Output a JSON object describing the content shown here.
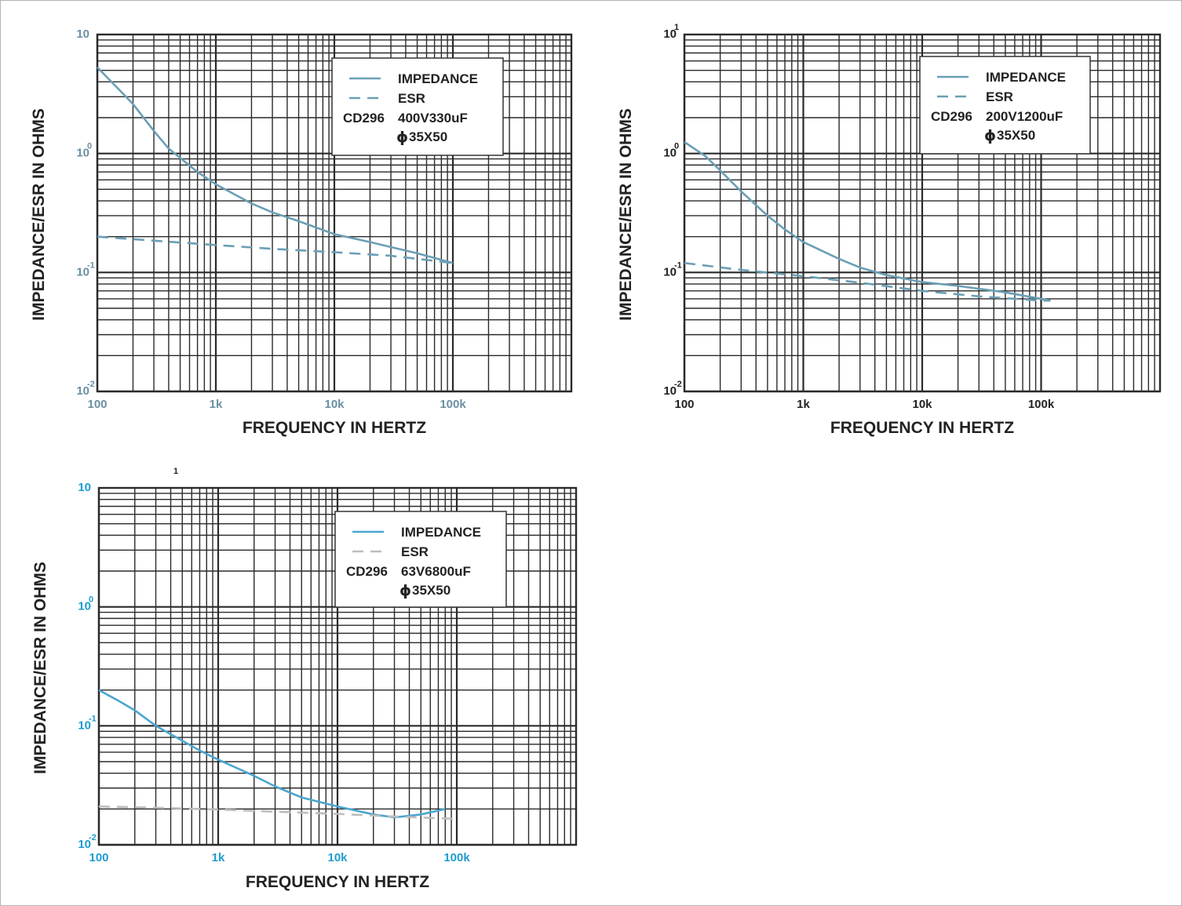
{
  "chart_data": [
    {
      "type": "line",
      "ylabel": "IMPEDANCE/ESR IN OHMS",
      "xlabel": "FREQUENCY IN HERTZ",
      "x_scale": "log",
      "y_scale": "log",
      "xlim": [
        100,
        1000000
      ],
      "ylim": [
        0.01,
        10
      ],
      "x_ticks": [
        {
          "value": 100,
          "label": "100"
        },
        {
          "value": 1000,
          "label": "1k"
        },
        {
          "value": 10000,
          "label": "10k"
        },
        {
          "value": 100000,
          "label": "100k"
        }
      ],
      "y_ticks": [
        {
          "value": 10,
          "base": "10",
          "exp": ""
        },
        {
          "value": 1,
          "base": "10",
          "exp": "0"
        },
        {
          "value": 0.1,
          "base": "10",
          "exp": "-1"
        },
        {
          "value": 0.01,
          "base": "10",
          "exp": "-2"
        }
      ],
      "tick_color": "#6a8fa3",
      "grid": true,
      "legend": {
        "position": "top-right",
        "impedance_label": "IMPEDANCE",
        "esr_label": "ESR",
        "model": "CD296",
        "rating": "400V330uF",
        "size_symbol": "ϕ",
        "size": "35X50"
      },
      "series": [
        {
          "name": "IMPEDANCE",
          "style": "solid",
          "color": "#6a9fb5",
          "x": [
            100,
            150,
            200,
            300,
            400,
            700,
            1000,
            2000,
            3000,
            5000,
            10000,
            20000,
            50000,
            100000
          ],
          "y": [
            5.3,
            3.5,
            2.6,
            1.55,
            1.1,
            0.7,
            0.55,
            0.38,
            0.32,
            0.27,
            0.21,
            0.18,
            0.145,
            0.12
          ]
        },
        {
          "name": "ESR",
          "style": "dashed",
          "color": "#6a9fb5",
          "x": [
            100,
            300,
            1000,
            3000,
            10000,
            30000,
            100000
          ],
          "y": [
            0.2,
            0.185,
            0.17,
            0.158,
            0.148,
            0.138,
            0.12
          ]
        }
      ]
    },
    {
      "type": "line",
      "ylabel": "IMPEDANCE/ESR IN OHMS",
      "xlabel": "FREQUENCY IN HERTZ",
      "x_scale": "log",
      "y_scale": "log",
      "xlim": [
        100,
        1000000
      ],
      "ylim": [
        0.01,
        10
      ],
      "x_ticks": [
        {
          "value": 100,
          "label": "100"
        },
        {
          "value": 1000,
          "label": "1k"
        },
        {
          "value": 10000,
          "label": "10k"
        },
        {
          "value": 100000,
          "label": "100k"
        }
      ],
      "y_ticks": [
        {
          "value": 10,
          "base": "10",
          "exp": "1"
        },
        {
          "value": 1,
          "base": "10",
          "exp": "0"
        },
        {
          "value": 0.1,
          "base": "10",
          "exp": "-1"
        },
        {
          "value": 0.01,
          "base": "10",
          "exp": "-2"
        }
      ],
      "tick_color": "#222222",
      "grid": true,
      "legend": {
        "position": "top-right",
        "impedance_label": "IMPEDANCE",
        "esr_label": "ESR",
        "model": "CD296",
        "rating": "200V1200uF",
        "size_symbol": "ϕ",
        "size": "35X50"
      },
      "series": [
        {
          "name": "IMPEDANCE",
          "style": "solid",
          "color": "#6a9fb5",
          "x": [
            100,
            150,
            200,
            300,
            500,
            700,
            1000,
            2000,
            3000,
            5000,
            10000,
            20000,
            50000,
            120000
          ],
          "y": [
            1.25,
            0.95,
            0.72,
            0.48,
            0.3,
            0.23,
            0.18,
            0.13,
            0.11,
            0.095,
            0.083,
            0.077,
            0.068,
            0.058
          ]
        },
        {
          "name": "ESR",
          "style": "dashed",
          "color": "#6a9fb5",
          "x": [
            100,
            300,
            1000,
            3000,
            10000,
            30000,
            100000,
            120000
          ],
          "y": [
            0.12,
            0.105,
            0.093,
            0.082,
            0.07,
            0.063,
            0.058,
            0.058
          ]
        }
      ]
    },
    {
      "type": "line",
      "ylabel": "IMPEDANCE/ESR IN OHMS",
      "xlabel": "FREQUENCY IN HERTZ",
      "x_scale": "log",
      "y_scale": "log",
      "xlim": [
        100,
        1000000
      ],
      "ylim": [
        0.01,
        10
      ],
      "top_note": "1",
      "x_ticks": [
        {
          "value": 100,
          "label": "100"
        },
        {
          "value": 1000,
          "label": "1k"
        },
        {
          "value": 10000,
          "label": "10k"
        },
        {
          "value": 100000,
          "label": "100k"
        }
      ],
      "y_ticks": [
        {
          "value": 10,
          "base": "10",
          "exp": ""
        },
        {
          "value": 1,
          "base": "10",
          "exp": "0"
        },
        {
          "value": 0.1,
          "base": "10",
          "exp": "-1"
        },
        {
          "value": 0.01,
          "base": "10",
          "exp": "-2"
        }
      ],
      "tick_color": "#1e9bd0",
      "grid": true,
      "legend": {
        "position": "top-right",
        "impedance_label": "IMPEDANCE",
        "esr_label": "ESR",
        "model": "CD296",
        "rating": "63V6800uF",
        "size_symbol": "ϕ",
        "size": "35X50"
      },
      "series": [
        {
          "name": "IMPEDANCE",
          "style": "solid",
          "color": "#4ba6cf",
          "x": [
            100,
            150,
            200,
            300,
            400,
            700,
            1000,
            2000,
            3000,
            5000,
            10000,
            20000,
            30000,
            50000,
            80000
          ],
          "y": [
            0.2,
            0.16,
            0.135,
            0.1,
            0.085,
            0.062,
            0.052,
            0.038,
            0.031,
            0.025,
            0.021,
            0.018,
            0.017,
            0.018,
            0.02
          ]
        },
        {
          "name": "ESR",
          "style": "dashed",
          "color": "#bdbdbd",
          "x": [
            100,
            300,
            1000,
            3000,
            10000,
            30000,
            100000
          ],
          "y": [
            0.021,
            0.0205,
            0.0198,
            0.019,
            0.0182,
            0.0173,
            0.0165
          ]
        }
      ]
    }
  ]
}
